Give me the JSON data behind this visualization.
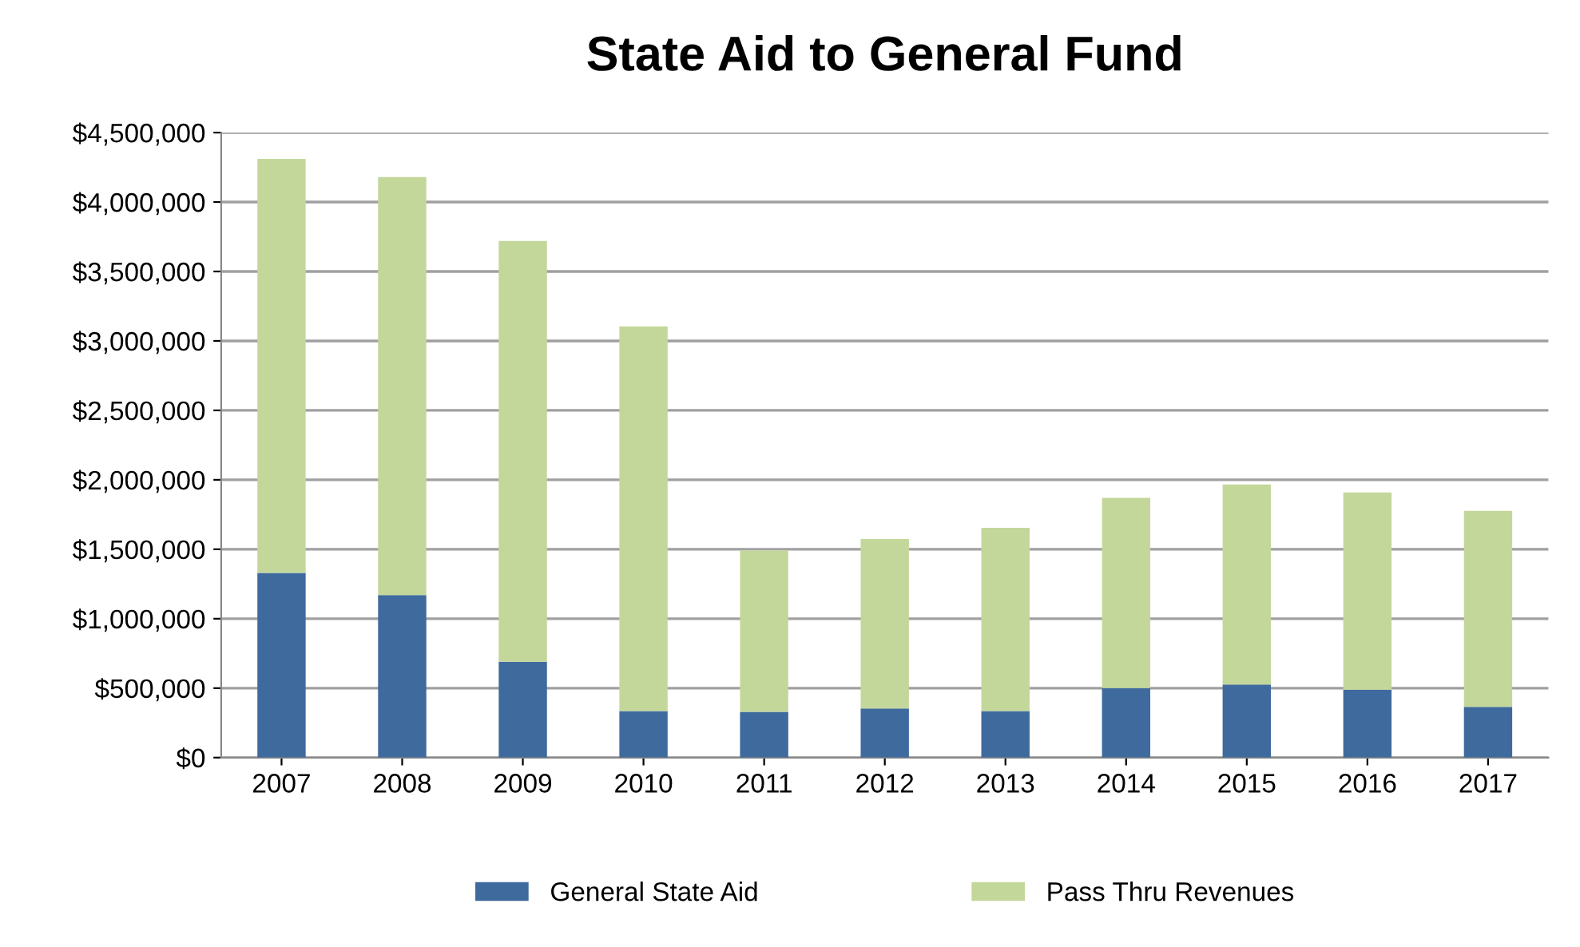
{
  "chart_data": {
    "type": "bar",
    "title": "State Aid to General Fund",
    "stacked": true,
    "categories": [
      "2007",
      "2008",
      "2009",
      "2010",
      "2011",
      "2012",
      "2013",
      "2014",
      "2015",
      "2016",
      "2017"
    ],
    "series": [
      {
        "name": "General State Aid",
        "color": "#3f6a9e",
        "values": [
          1330000,
          1170000,
          690000,
          335000,
          330000,
          354000,
          335000,
          500000,
          527000,
          489000,
          366000
        ]
      },
      {
        "name": "Pass Thru Revenues",
        "color": "#c4d79b",
        "values": [
          2980000,
          3010000,
          3030000,
          2770000,
          1160000,
          1220000,
          1320000,
          1370000,
          1440000,
          1420000,
          1410000
        ]
      }
    ],
    "ylim": [
      0,
      4500000
    ],
    "yticks": [
      {
        "value": 0,
        "label": "$0"
      },
      {
        "value": 500000,
        "label": "$500,000"
      },
      {
        "value": 1000000,
        "label": "$1,000,000"
      },
      {
        "value": 1500000,
        "label": "$1,500,000"
      },
      {
        "value": 2000000,
        "label": "$2,000,000"
      },
      {
        "value": 2500000,
        "label": "$2,500,000"
      },
      {
        "value": 3000000,
        "label": "$3,000,000"
      },
      {
        "value": 3500000,
        "label": "$3,500,000"
      },
      {
        "value": 4000000,
        "label": "$4,000,000"
      },
      {
        "value": 4500000,
        "label": "$4,500,000"
      }
    ],
    "grid": "y",
    "legend": "bottom"
  }
}
